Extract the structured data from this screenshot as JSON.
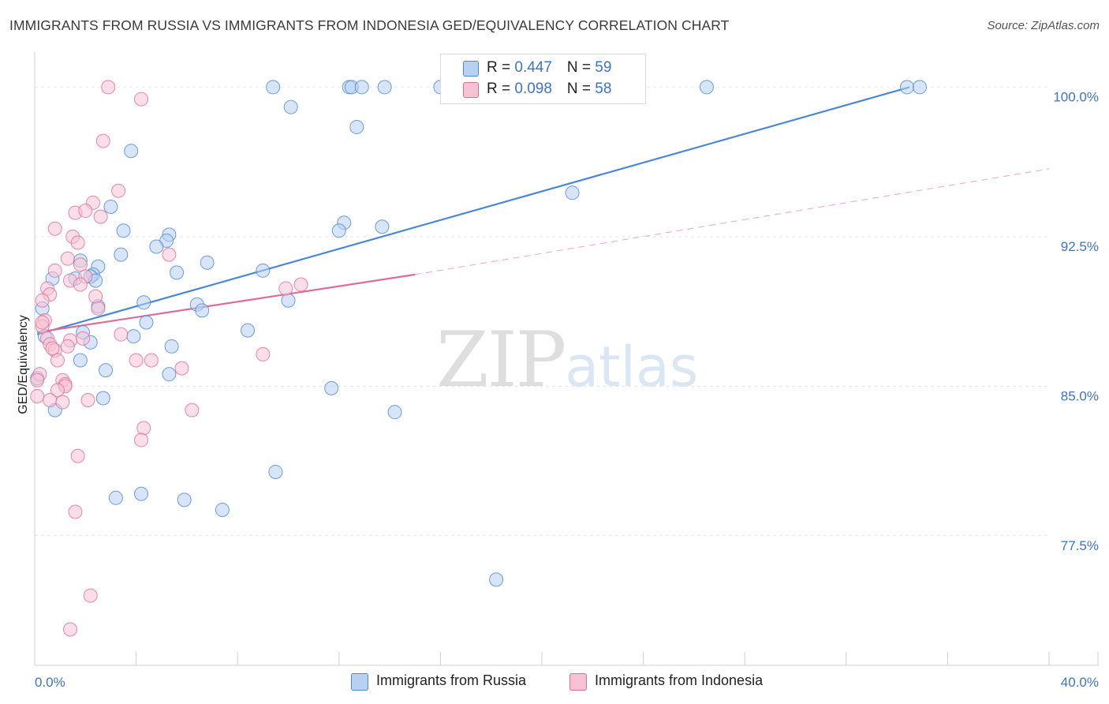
{
  "title": "IMMIGRANTS FROM RUSSIA VS IMMIGRANTS FROM INDONESIA GED/EQUIVALENCY CORRELATION CHART",
  "source": "Source: ZipAtlas.com",
  "watermark": {
    "zip": "ZIP",
    "atlas": "atlas"
  },
  "legend": {
    "russia": {
      "r_label": "R = ",
      "r_value": "0.447",
      "n_label": "N = ",
      "n_value": "59"
    },
    "indonesia": {
      "r_label": "R = ",
      "r_value": "0.098",
      "n_label": "N = ",
      "n_value": "58"
    }
  },
  "chart_data": {
    "type": "scatter",
    "title": "IMMIGRANTS FROM RUSSIA VS IMMIGRANTS FROM INDONESIA GED/EQUIVALENCY CORRELATION CHART",
    "xlabel": "",
    "ylabel": "GED/Equivalency",
    "xlim": [
      0,
      40
    ],
    "ylim": [
      71.0,
      101.6
    ],
    "x_tick_labels": [
      "0.0%",
      "40.0%"
    ],
    "y_ticks": [
      77.5,
      85.0,
      92.5,
      100.0
    ],
    "y_tick_labels": [
      "77.5%",
      "85.0%",
      "92.5%",
      "100.0%"
    ],
    "grid": true,
    "legend_position": "top-center",
    "colors": {
      "russia": "#4a87d8",
      "russia_fill": "#b8d0f2",
      "indonesia": "#e06b97",
      "indonesia_fill": "#f7c3d4"
    },
    "series": [
      {
        "name": "Immigrants from Russia",
        "color": "#4a87d8",
        "trend": {
          "x0": 0.1,
          "y0": 87.6,
          "x1": 34.5,
          "y1": 100.0
        },
        "points": [
          [
            9.4,
            100.0
          ],
          [
            12.4,
            100.0
          ],
          [
            12.5,
            100.0
          ],
          [
            12.9,
            100.0
          ],
          [
            13.8,
            100.0
          ],
          [
            16.0,
            100.0
          ],
          [
            26.5,
            100.0
          ],
          [
            34.4,
            100.0
          ],
          [
            34.9,
            100.0
          ],
          [
            10.1,
            99.0
          ],
          [
            12.7,
            98.0
          ],
          [
            3.8,
            96.8
          ],
          [
            21.2,
            94.7
          ],
          [
            3.0,
            94.0
          ],
          [
            12.2,
            93.2
          ],
          [
            3.5,
            92.8
          ],
          [
            12.0,
            92.8
          ],
          [
            13.7,
            93.0
          ],
          [
            5.3,
            92.6
          ],
          [
            5.2,
            92.3
          ],
          [
            4.8,
            92.0
          ],
          [
            3.4,
            91.6
          ],
          [
            1.8,
            91.3
          ],
          [
            6.8,
            91.2
          ],
          [
            2.5,
            91.0
          ],
          [
            5.6,
            90.7
          ],
          [
            9.0,
            90.8
          ],
          [
            2.3,
            90.6
          ],
          [
            2.2,
            90.5
          ],
          [
            1.6,
            90.4
          ],
          [
            0.7,
            90.4
          ],
          [
            2.4,
            90.3
          ],
          [
            4.3,
            89.2
          ],
          [
            6.4,
            89.1
          ],
          [
            2.5,
            89.0
          ],
          [
            6.6,
            88.8
          ],
          [
            0.3,
            88.9
          ],
          [
            10.0,
            89.3
          ],
          [
            4.4,
            88.2
          ],
          [
            8.4,
            87.8
          ],
          [
            1.9,
            87.7
          ],
          [
            0.4,
            87.5
          ],
          [
            3.9,
            87.5
          ],
          [
            2.2,
            87.2
          ],
          [
            5.4,
            87.0
          ],
          [
            1.8,
            86.3
          ],
          [
            2.8,
            85.8
          ],
          [
            5.3,
            85.6
          ],
          [
            0.1,
            85.4
          ],
          [
            11.7,
            84.9
          ],
          [
            2.7,
            84.4
          ],
          [
            0.8,
            83.8
          ],
          [
            14.2,
            83.7
          ],
          [
            9.5,
            80.7
          ],
          [
            3.2,
            79.4
          ],
          [
            4.2,
            79.6
          ],
          [
            5.9,
            79.3
          ],
          [
            7.4,
            78.8
          ],
          [
            18.2,
            75.3
          ]
        ]
      },
      {
        "name": "Immigrants from Indonesia",
        "color": "#e06b97",
        "trend": {
          "x0": 0.1,
          "y0": 87.7,
          "x1": 15.0,
          "y1": 90.6,
          "dashed_to": {
            "x": 40.0,
            "y": 95.9
          }
        },
        "points": [
          [
            2.9,
            100.0
          ],
          [
            4.2,
            99.4
          ],
          [
            2.7,
            97.3
          ],
          [
            3.3,
            94.8
          ],
          [
            2.3,
            94.2
          ],
          [
            1.6,
            93.7
          ],
          [
            2.0,
            93.8
          ],
          [
            2.6,
            93.5
          ],
          [
            0.8,
            92.9
          ],
          [
            1.5,
            92.5
          ],
          [
            1.7,
            92.2
          ],
          [
            5.3,
            91.6
          ],
          [
            1.3,
            91.4
          ],
          [
            1.8,
            91.1
          ],
          [
            0.8,
            90.8
          ],
          [
            2.0,
            90.5
          ],
          [
            1.4,
            90.3
          ],
          [
            1.8,
            90.1
          ],
          [
            10.5,
            90.1
          ],
          [
            9.9,
            89.9
          ],
          [
            0.5,
            89.9
          ],
          [
            0.6,
            89.6
          ],
          [
            2.4,
            89.5
          ],
          [
            0.3,
            89.3
          ],
          [
            2.5,
            88.9
          ],
          [
            0.4,
            88.3
          ],
          [
            0.3,
            88.0
          ],
          [
            0.5,
            87.4
          ],
          [
            3.4,
            87.6
          ],
          [
            1.9,
            87.4
          ],
          [
            1.4,
            87.3
          ],
          [
            1.3,
            87.0
          ],
          [
            0.6,
            87.1
          ],
          [
            0.8,
            86.8
          ],
          [
            0.7,
            86.9
          ],
          [
            9.0,
            86.6
          ],
          [
            0.9,
            86.3
          ],
          [
            4.6,
            86.3
          ],
          [
            4.0,
            86.3
          ],
          [
            5.8,
            85.9
          ],
          [
            0.2,
            85.6
          ],
          [
            1.1,
            85.3
          ],
          [
            1.2,
            85.1
          ],
          [
            1.2,
            85.0
          ],
          [
            0.9,
            84.8
          ],
          [
            0.1,
            84.5
          ],
          [
            0.6,
            84.3
          ],
          [
            1.1,
            84.2
          ],
          [
            2.1,
            84.3
          ],
          [
            6.2,
            83.8
          ],
          [
            4.3,
            82.9
          ],
          [
            4.2,
            82.3
          ],
          [
            1.7,
            81.5
          ],
          [
            1.6,
            78.7
          ],
          [
            2.2,
            74.5
          ],
          [
            1.4,
            72.8
          ],
          [
            0.1,
            85.3
          ],
          [
            0.3,
            88.2
          ]
        ]
      }
    ]
  },
  "bottom_legend": {
    "russia_label": "Immigrants from Russia",
    "indonesia_label": "Immigrants from Indonesia"
  }
}
